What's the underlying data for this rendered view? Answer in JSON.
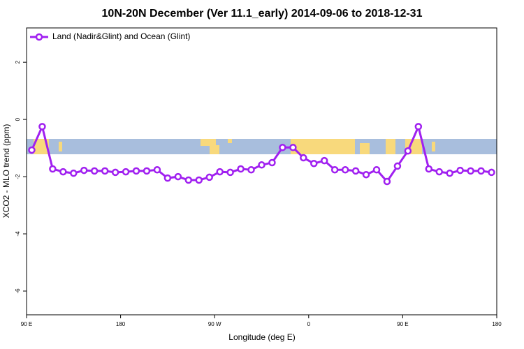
{
  "chart_data": {
    "type": "line",
    "title": "10N-20N December (Ver 11.1_early)   2014-09-06 to 2018-12-31",
    "x_label": "Longitude (deg E)",
    "y_label": "XCO2 - MLO trend (ppm)",
    "xlim": [
      90,
      540
    ],
    "ylim": [
      -6.83,
      3.2
    ],
    "xticks": [
      {
        "value": 90,
        "label": "90 E"
      },
      {
        "value": 180,
        "label": "180"
      },
      {
        "value": 270,
        "label": "90 W"
      },
      {
        "value": 360,
        "label": "0"
      },
      {
        "value": 450,
        "label": "90 E"
      },
      {
        "value": 540,
        "label": "180"
      }
    ],
    "yticks": [
      2,
      0,
      -2,
      -4,
      -6
    ],
    "legend": "top-left",
    "x": [
      95,
      105,
      115,
      125,
      135,
      145,
      155,
      165,
      175,
      185,
      195,
      205,
      215,
      225,
      235,
      245,
      255,
      265,
      275,
      285,
      295,
      305,
      315,
      325,
      335,
      345,
      355,
      365,
      375,
      385,
      395,
      405,
      415,
      425,
      435,
      445,
      455,
      465,
      475,
      485,
      495,
      505,
      515,
      525,
      535
    ],
    "series": [
      {
        "name": "Land (Nadir&Glint) and Ocean (Glint)",
        "color": "#a020f0",
        "values": [
          -1.07,
          -0.25,
          -1.73,
          -1.83,
          -1.88,
          -1.78,
          -1.8,
          -1.8,
          -1.85,
          -1.83,
          -1.8,
          -1.8,
          -1.76,
          -2.05,
          -2.0,
          -2.12,
          -2.12,
          -2.02,
          -1.83,
          -1.85,
          -1.73,
          -1.76,
          -1.59,
          -1.51,
          -0.98,
          -0.98,
          -1.34,
          -1.54,
          -1.44,
          -1.76,
          -1.76,
          -1.8,
          -1.93,
          -1.76,
          -2.17,
          -1.63,
          -1.1,
          -0.25,
          -1.73,
          -1.83,
          -1.88,
          -1.78,
          -1.8,
          -1.8,
          -1.85
        ]
      }
    ]
  }
}
